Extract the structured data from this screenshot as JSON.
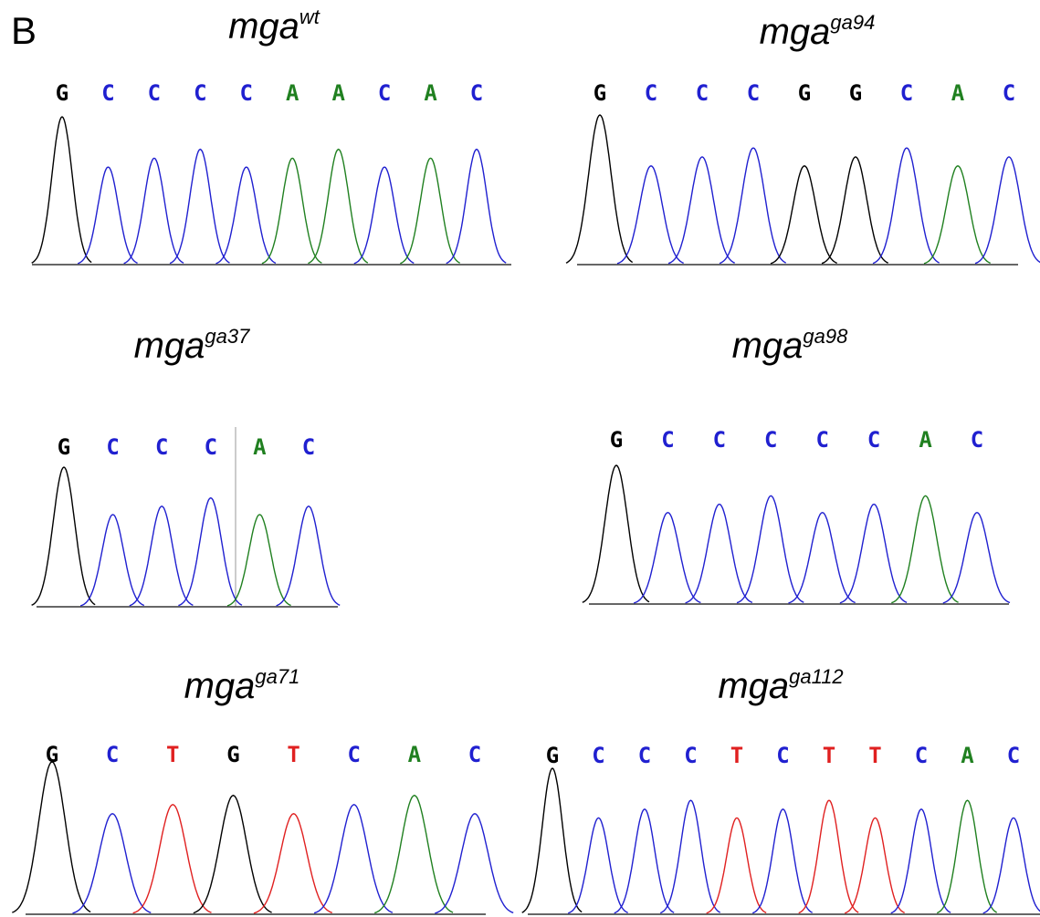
{
  "panel_label": "B",
  "base_colors": {
    "G": "#000000",
    "C": "#2020d0",
    "A": "#208020",
    "T": "#e02020"
  },
  "panels": [
    {
      "title": "mga",
      "superscript": "wt",
      "bases": [
        "G",
        "C",
        "C",
        "C",
        "C",
        "A",
        "A",
        "C",
        "A",
        "C"
      ]
    },
    {
      "title": "mga",
      "superscript": "ga94",
      "bases": [
        "G",
        "C",
        "C",
        "C",
        "G",
        "G",
        "C",
        "A",
        "C"
      ]
    },
    {
      "title": "mga",
      "superscript": "ga37",
      "bases": [
        "G",
        "C",
        "C",
        "C",
        "A",
        "C"
      ]
    },
    {
      "title": "mga",
      "superscript": "ga98",
      "bases": [
        "G",
        "C",
        "C",
        "C",
        "C",
        "C",
        "A",
        "C"
      ]
    },
    {
      "title": "mga",
      "superscript": "ga71",
      "bases": [
        "G",
        "C",
        "T",
        "G",
        "T",
        "C",
        "A",
        "C"
      ]
    },
    {
      "title": "mga",
      "superscript": "ga112",
      "bases": [
        "G",
        "C",
        "C",
        "C",
        "T",
        "C",
        "T",
        "T",
        "C",
        "A",
        "C"
      ]
    }
  ]
}
